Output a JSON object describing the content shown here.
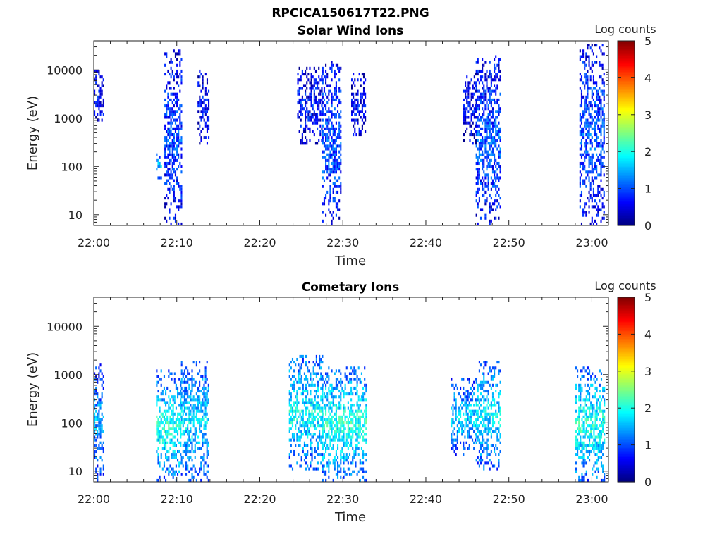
{
  "figure_title": "RPCICA150617T22.PNG",
  "chart_data": [
    {
      "type": "heatmap",
      "title": "Solar Wind Ions",
      "xlabel": "Time",
      "ylabel": "Energy (eV)",
      "x_ticks": [
        "22:00",
        "22:10",
        "22:20",
        "22:30",
        "22:40",
        "22:50",
        "23:00"
      ],
      "x_range_minutes": [
        0,
        62
      ],
      "y_scale": "log",
      "y_ticks": [
        "10",
        "100",
        "1000",
        "10000"
      ],
      "y_tick_values": [
        10,
        100,
        1000,
        10000
      ],
      "ylim": [
        6,
        40000
      ],
      "colorbar": {
        "label": "Log counts",
        "range": [
          0,
          5
        ],
        "ticks": [
          "0",
          "1",
          "2",
          "3",
          "4",
          "5"
        ],
        "colormap": "jet"
      },
      "bursts": [
        {
          "t_start_minutes": 0.0,
          "t_end_minutes": 1.2,
          "e_min": 800,
          "e_max": 10000,
          "intensity": 0.6
        },
        {
          "t_start_minutes": 7.5,
          "t_end_minutes": 8.2,
          "e_min": 50,
          "e_max": 200,
          "intensity": 1.6
        },
        {
          "t_start_minutes": 8.5,
          "t_end_minutes": 10.6,
          "e_min": 6,
          "e_max": 25000,
          "intensity": 0.9
        },
        {
          "t_start_minutes": 12.5,
          "t_end_minutes": 13.8,
          "e_min": 300,
          "e_max": 10000,
          "intensity": 0.6
        },
        {
          "t_start_minutes": 24.5,
          "t_end_minutes": 27.5,
          "e_min": 300,
          "e_max": 12000,
          "intensity": 0.7
        },
        {
          "t_start_minutes": 27.5,
          "t_end_minutes": 29.8,
          "e_min": 6,
          "e_max": 15000,
          "intensity": 1.0
        },
        {
          "t_start_minutes": 31.0,
          "t_end_minutes": 32.8,
          "e_min": 400,
          "e_max": 9000,
          "intensity": 0.6
        },
        {
          "t_start_minutes": 44.5,
          "t_end_minutes": 46.0,
          "e_min": 300,
          "e_max": 9000,
          "intensity": 0.6
        },
        {
          "t_start_minutes": 46.0,
          "t_end_minutes": 49.0,
          "e_min": 6,
          "e_max": 20000,
          "intensity": 1.0
        },
        {
          "t_start_minutes": 58.5,
          "t_end_minutes": 61.5,
          "e_min": 6,
          "e_max": 35000,
          "intensity": 1.0
        }
      ]
    },
    {
      "type": "heatmap",
      "title": "Cometary Ions",
      "xlabel": "Time",
      "ylabel": "Energy (eV)",
      "x_ticks": [
        "22:00",
        "22:10",
        "22:20",
        "22:30",
        "22:40",
        "22:50",
        "23:00"
      ],
      "x_range_minutes": [
        0,
        62
      ],
      "y_scale": "log",
      "y_ticks": [
        "10",
        "100",
        "1000",
        "10000"
      ],
      "y_tick_values": [
        10,
        100,
        1000,
        10000
      ],
      "ylim": [
        6,
        40000
      ],
      "colorbar": {
        "label": "Log counts",
        "range": [
          0,
          5
        ],
        "ticks": [
          "0",
          "1",
          "2",
          "3",
          "4",
          "5"
        ],
        "colormap": "jet"
      },
      "bursts": [
        {
          "t_start_minutes": 0.0,
          "t_end_minutes": 1.2,
          "e_min": 6,
          "e_max": 1800,
          "intensity": 1.4
        },
        {
          "t_start_minutes": 7.5,
          "t_end_minutes": 10.5,
          "e_min": 6,
          "e_max": 1200,
          "intensity": 2.0
        },
        {
          "t_start_minutes": 10.5,
          "t_end_minutes": 13.8,
          "e_min": 6,
          "e_max": 2000,
          "intensity": 1.7
        },
        {
          "t_start_minutes": 23.5,
          "t_end_minutes": 27.5,
          "e_min": 10,
          "e_max": 2500,
          "intensity": 1.9
        },
        {
          "t_start_minutes": 27.5,
          "t_end_minutes": 32.8,
          "e_min": 6,
          "e_max": 1500,
          "intensity": 2.0
        },
        {
          "t_start_minutes": 43.0,
          "t_end_minutes": 46.0,
          "e_min": 20,
          "e_max": 800,
          "intensity": 1.6
        },
        {
          "t_start_minutes": 46.0,
          "t_end_minutes": 49.0,
          "e_min": 10,
          "e_max": 2000,
          "intensity": 1.8
        },
        {
          "t_start_minutes": 58.0,
          "t_end_minutes": 61.5,
          "e_min": 6,
          "e_max": 1500,
          "intensity": 2.0
        }
      ]
    }
  ]
}
